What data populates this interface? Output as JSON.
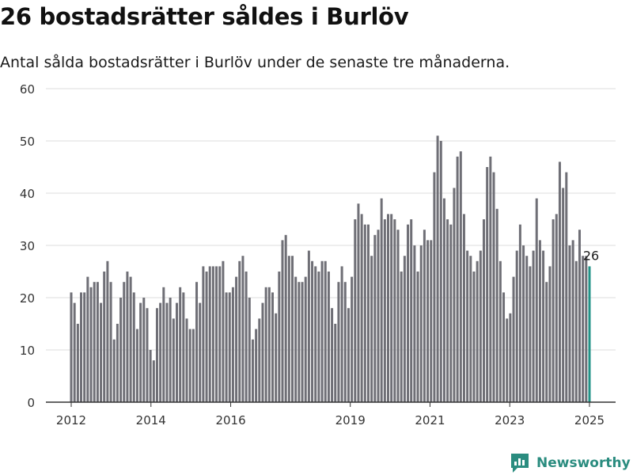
{
  "title": "26 bostadsrätter såldes i Burlöv",
  "subtitle": "Antal sålda bostadsrätter i Burlöv under de senaste tre månaderna.",
  "brand": {
    "name": "Newsworthy",
    "color": "#2a8c7f"
  },
  "colors": {
    "bar": "#6f6f76",
    "highlight": "#229387",
    "grid": "#dcdcdc",
    "axis": "#333333"
  },
  "chart_data": {
    "type": "bar",
    "ylim": [
      0,
      60
    ],
    "y_ticks": [
      "0",
      "10",
      "20",
      "30",
      "40",
      "50",
      "60"
    ],
    "x_ticks": [
      {
        "label": "2012",
        "x": 2012.0
      },
      {
        "label": "2014",
        "x": 2014.0
      },
      {
        "label": "2016",
        "x": 2016.0
      },
      {
        "label": "2019",
        "x": 2019.0
      },
      {
        "label": "2021",
        "x": 2021.0
      },
      {
        "label": "2023",
        "x": 2023.0
      },
      {
        "label": "2025",
        "x": 2025.0
      }
    ],
    "x_start": "2012-01",
    "x_end": "2025-01",
    "values": [
      21,
      19,
      15,
      21,
      21,
      24,
      22,
      23,
      23,
      19,
      25,
      27,
      23,
      12,
      15,
      20,
      23,
      25,
      24,
      21,
      14,
      19,
      20,
      18,
      10,
      8,
      18,
      19,
      22,
      19,
      20,
      16,
      19,
      22,
      21,
      16,
      14,
      14,
      23,
      19,
      26,
      25,
      26,
      26,
      26,
      26,
      27,
      21,
      21,
      22,
      24,
      27,
      28,
      25,
      20,
      12,
      14,
      16,
      19,
      22,
      22,
      21,
      17,
      25,
      31,
      32,
      28,
      28,
      24,
      23,
      23,
      24,
      29,
      27,
      26,
      25,
      27,
      27,
      25,
      18,
      15,
      23,
      26,
      23,
      18,
      24,
      35,
      38,
      36,
      34,
      34,
      28,
      32,
      33,
      39,
      35,
      36,
      36,
      35,
      33,
      25,
      28,
      34,
      35,
      30,
      25,
      30,
      33,
      31,
      31,
      44,
      51,
      50,
      39,
      35,
      34,
      41,
      47,
      48,
      36,
      29,
      28,
      25,
      27,
      29,
      35,
      45,
      47,
      44,
      37,
      27,
      21,
      16,
      17,
      24,
      29,
      34,
      30,
      28,
      26,
      29,
      39,
      31,
      29,
      23,
      26,
      35,
      36,
      46,
      41,
      44,
      30,
      31,
      27,
      33,
      28,
      28,
      26
    ],
    "highlight_label": "26"
  }
}
